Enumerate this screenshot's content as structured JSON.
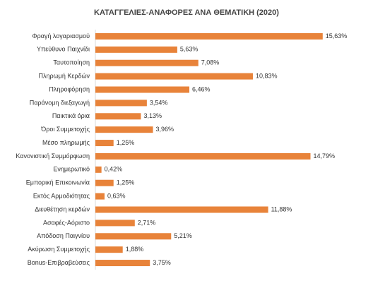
{
  "chart_data": {
    "type": "bar",
    "orientation": "horizontal",
    "title": "ΚΑΤΑΓΓΕΛΙΕΣ-ΑΝΑΦΟΡΕΣ ΑΝΑ ΘΕΜΑΤΙΚΗ (2020)",
    "categories": [
      "Φραγή λογαριασμού",
      "Υπεύθυνο Παιχνίδι",
      "Ταυτοποίηση",
      "Πληρωμή Κερδών",
      "Πληροφόρηση",
      "Παράνομη διεξαγωγή",
      "Παικτικά όρια",
      "Όροι Συμμετοχής",
      "Μέσο πληρωμής",
      "Κανονιστική Συμμόρφωση",
      "Ενημερωτικό",
      "Εμπορική Επικοινωνία",
      "Εκτός Αρμοδιότητας",
      "Διευθέτηση κερδών",
      "Ασαφές-Αόριστο",
      "Απόδοση Παιγνίου",
      "Ακύρωση Συμμετοχής",
      "Bonus-Επιβραβεύσεις"
    ],
    "values": [
      15.63,
      5.63,
      7.08,
      10.83,
      6.46,
      3.54,
      3.13,
      3.96,
      1.25,
      14.79,
      0.42,
      1.25,
      0.63,
      11.88,
      2.71,
      5.21,
      1.88,
      3.75
    ],
    "value_labels": [
      "15,63%",
      "5,63%",
      "7,08%",
      "10,83%",
      "6,46%",
      "3,54%",
      "3,13%",
      "3,96%",
      "1,25%",
      "14,79%",
      "0,42%",
      "1,25%",
      "0,63%",
      "11,88%",
      "2,71%",
      "5,21%",
      "1,88%",
      "3,75%"
    ],
    "color": "#e8833a",
    "xlim": [
      0,
      17
    ]
  }
}
